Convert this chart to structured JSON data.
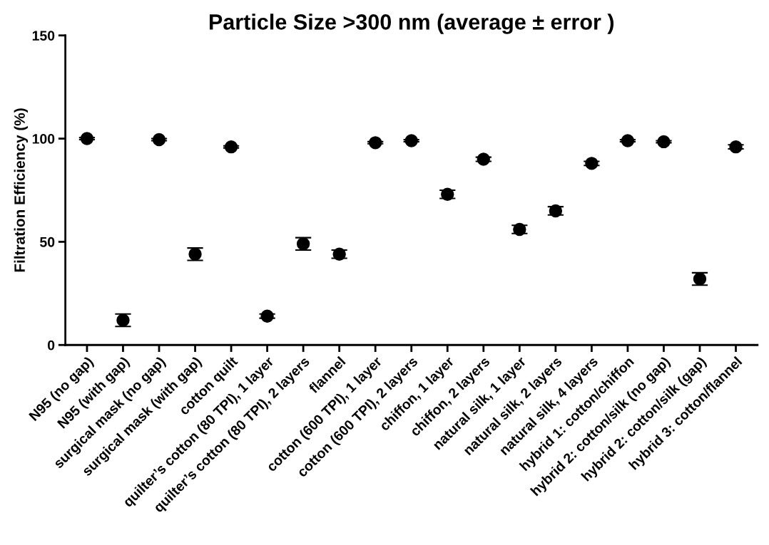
{
  "chart_data": {
    "type": "scatter",
    "title": "Particle Size >300 nm (average ± error )",
    "ylabel": "Filtration Efficiency (%)",
    "categories": [
      "N95 (no gap)",
      "N95 (with gap)",
      "surgical mask (no gap)",
      "surgical mask (with gap)",
      "cotton quilt",
      "quilter’s cotton (80 TPI), 1 layer",
      "quilter’s cotton (80 TPI), 2 layers",
      "flannel",
      "cotton (600 TPI), 1 layer",
      "cotton (600 TPI), 2 layers",
      "chiffon, 1 layer",
      "chiffon, 2 layers",
      "natural silk, 1 layer",
      "natural silk, 2 layers",
      "natural silk, 4 layers",
      "hybrid 1: cotton/chiffon",
      "hybrid 2: cotton/silk (no gap)",
      "hybrid 2: cotton/silk (gap)",
      "hybrid 3: cotton/flannel"
    ],
    "series": [
      {
        "color": "#000000",
        "values": [
          100,
          12,
          99.5,
          44,
          96,
          14,
          49,
          44,
          98,
          99,
          73,
          90,
          56,
          65,
          88,
          99,
          98.5,
          32,
          96
        ],
        "errors": [
          0.5,
          3,
          0.5,
          3,
          0.5,
          1,
          3,
          2,
          0.5,
          0.5,
          2,
          1,
          2,
          2,
          1,
          0.5,
          0.5,
          3,
          1
        ]
      }
    ],
    "ylim": [
      0,
      150
    ],
    "yticks": [
      0,
      50,
      100,
      150
    ],
    "grid": false,
    "marker": "circle"
  }
}
